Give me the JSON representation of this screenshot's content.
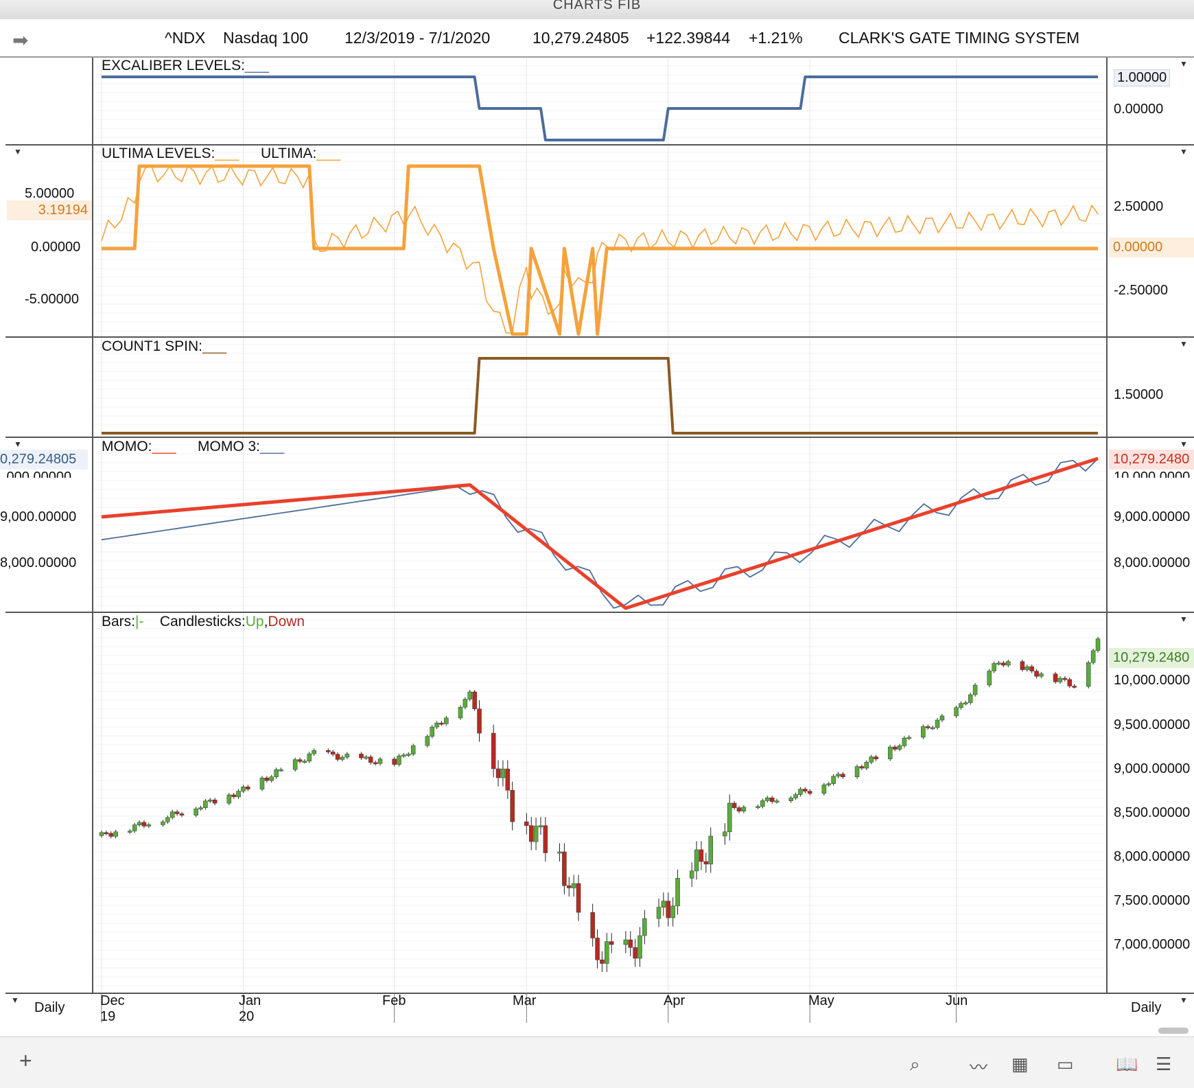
{
  "window_title": "CHARTS FIB",
  "header": {
    "symbol": "^NDX",
    "name": "Nasdaq 100",
    "range": "12/3/2019 - 7/1/2020",
    "last": "10,279.24805",
    "change": "+122.39844",
    "pct": "+1.21%",
    "system": "CLARK'S GATE TIMING SYSTEM"
  },
  "panes": {
    "excaliber": {
      "label": "EXCALIBER LEVELS:",
      "ticks": [
        "1.00000",
        "0.00000"
      ]
    },
    "ultima": {
      "label1": "ULTIMA LEVELS:",
      "label2": "ULTIMA:",
      "left_ticks": [
        "5.00000",
        "0.00000",
        "-5.00000"
      ],
      "left_tag": "3.19194",
      "right_ticks": [
        "2.50000",
        "-2.50000"
      ],
      "right_tag": "0.00000"
    },
    "count": {
      "label": "COUNT1 SPIN:",
      "ticks": [
        "1.50000"
      ]
    },
    "momo": {
      "label1": "MOMO:",
      "label2": "MOMO 3:",
      "left_tag": "0,279.24805",
      "left_ticks": [
        ",000.00000",
        "9,000.00000",
        "8,000.00000"
      ],
      "right_tag": "10,279.2480",
      "right_ticks": [
        "10,000.0000",
        "9,000.00000",
        "8,000.00000"
      ]
    },
    "price": {
      "label_bars": "Bars:",
      "label_bars_sym": "|-",
      "label_candles": "Candlesticks:",
      "up": "Up",
      "down": "Down",
      "right_tag": "10,279.2480",
      "right_ticks": [
        "10,000.0000",
        "9,500.00000",
        "9,000.00000",
        "8,500.00000",
        "8,000.00000",
        "7,500.00000",
        "7,000.00000"
      ]
    }
  },
  "xaxis": {
    "left_label": "Daily",
    "right_label": "Daily",
    "months": [
      "Dec",
      "Jan",
      "Feb",
      "Mar",
      "Apr",
      "May",
      "Jun"
    ],
    "years": [
      "19",
      "20"
    ]
  },
  "colors": {
    "blue": "#4b6d9b",
    "orange": "#f5a23c",
    "brown": "#8a5a22",
    "red": "#e8412c",
    "up": "#5aab3c",
    "down": "#b52b22"
  },
  "toolbar_icons": [
    "plus-icon",
    "search-icon",
    "line-chart-icon",
    "grid-icon",
    "panel-icon",
    "book-icon",
    "menu-icon"
  ],
  "chart_data": [
    {
      "type": "line",
      "title": "EXCALIBER LEVELS",
      "ylim": [
        0,
        1
      ],
      "x": [
        "2019-12-03",
        "2020-02-20",
        "2020-02-21",
        "2020-03-05",
        "2020-03-06",
        "2020-03-31",
        "2020-04-01",
        "2020-04-29",
        "2020-04-30",
        "2020-07-01"
      ],
      "series": [
        {
          "name": "EXCALIBER LEVELS",
          "values": [
            1,
            1,
            0,
            0,
            -1,
            -1,
            0,
            0,
            1,
            1
          ]
        }
      ]
    },
    {
      "type": "line",
      "title": "ULTIMA",
      "ylim": [
        -8,
        8
      ],
      "x": [
        "2019-12-03",
        "2019-12-10",
        "2019-12-11",
        "2020-01-16",
        "2020-01-17",
        "2020-02-05",
        "2020-02-06",
        "2020-02-21",
        "2020-02-24",
        "2020-02-28",
        "2020-03-02",
        "2020-03-03",
        "2020-03-09",
        "2020-03-10",
        "2020-03-13",
        "2020-03-16",
        "2020-03-17",
        "2020-03-19",
        "2020-07-01"
      ],
      "series": [
        {
          "name": "ULTIMA LEVELS",
          "values": [
            0,
            0,
            7.6,
            7.6,
            0,
            0,
            7.6,
            7.6,
            0,
            -7.9,
            -7.9,
            0,
            -7.9,
            0,
            -7.9,
            0,
            -7.9,
            0,
            0
          ]
        },
        {
          "name": "ULTIMA",
          "values": [
            1,
            4.5,
            7,
            6.5,
            0,
            3,
            3.5,
            -2,
            -6,
            -7.9,
            -1,
            -4,
            -6,
            -2,
            -3.5,
            -2.5,
            -1,
            0.5,
            3.19
          ]
        }
      ]
    },
    {
      "type": "line",
      "title": "COUNT1 SPIN",
      "ylim": [
        0,
        2
      ],
      "x": [
        "2019-12-03",
        "2020-02-20",
        "2020-02-21",
        "2020-04-01",
        "2020-04-02",
        "2020-07-01"
      ],
      "series": [
        {
          "name": "COUNT1 SPIN",
          "values": [
            0,
            0,
            2,
            2,
            0,
            0
          ]
        }
      ]
    },
    {
      "type": "line",
      "title": "MOMO",
      "ylim": [
        7000,
        10300
      ],
      "x": [
        "2019-12-03",
        "2020-02-19",
        "2020-03-23",
        "2020-07-01"
      ],
      "series": [
        {
          "name": "MOMO",
          "values": [
            9000,
            9700,
            7000,
            10279.24805
          ]
        },
        {
          "name": "MOMO 3",
          "values": [
            8500,
            9700,
            7000,
            10279.24805
          ]
        }
      ]
    },
    {
      "type": "bar",
      "title": "Candlesticks",
      "ylim": [
        6600,
        10500
      ],
      "x": [
        "2019-12-03",
        "2019-12-16",
        "2020-01-02",
        "2020-01-17",
        "2020-02-03",
        "2020-02-19",
        "2020-02-28",
        "2020-03-09",
        "2020-03-16",
        "2020-03-23",
        "2020-04-01",
        "2020-04-15",
        "2020-05-01",
        "2020-05-15",
        "2020-06-01",
        "2020-06-10",
        "2020-06-26",
        "2020-07-01"
      ],
      "series": [
        {
          "name": "Close",
          "values": [
            8240,
            8420,
            8720,
            9110,
            9000,
            9720,
            8540,
            8000,
            7020,
            6990,
            7500,
            8520,
            8720,
            9060,
            9560,
            10080,
            9830,
            10279.24805
          ]
        }
      ]
    }
  ]
}
